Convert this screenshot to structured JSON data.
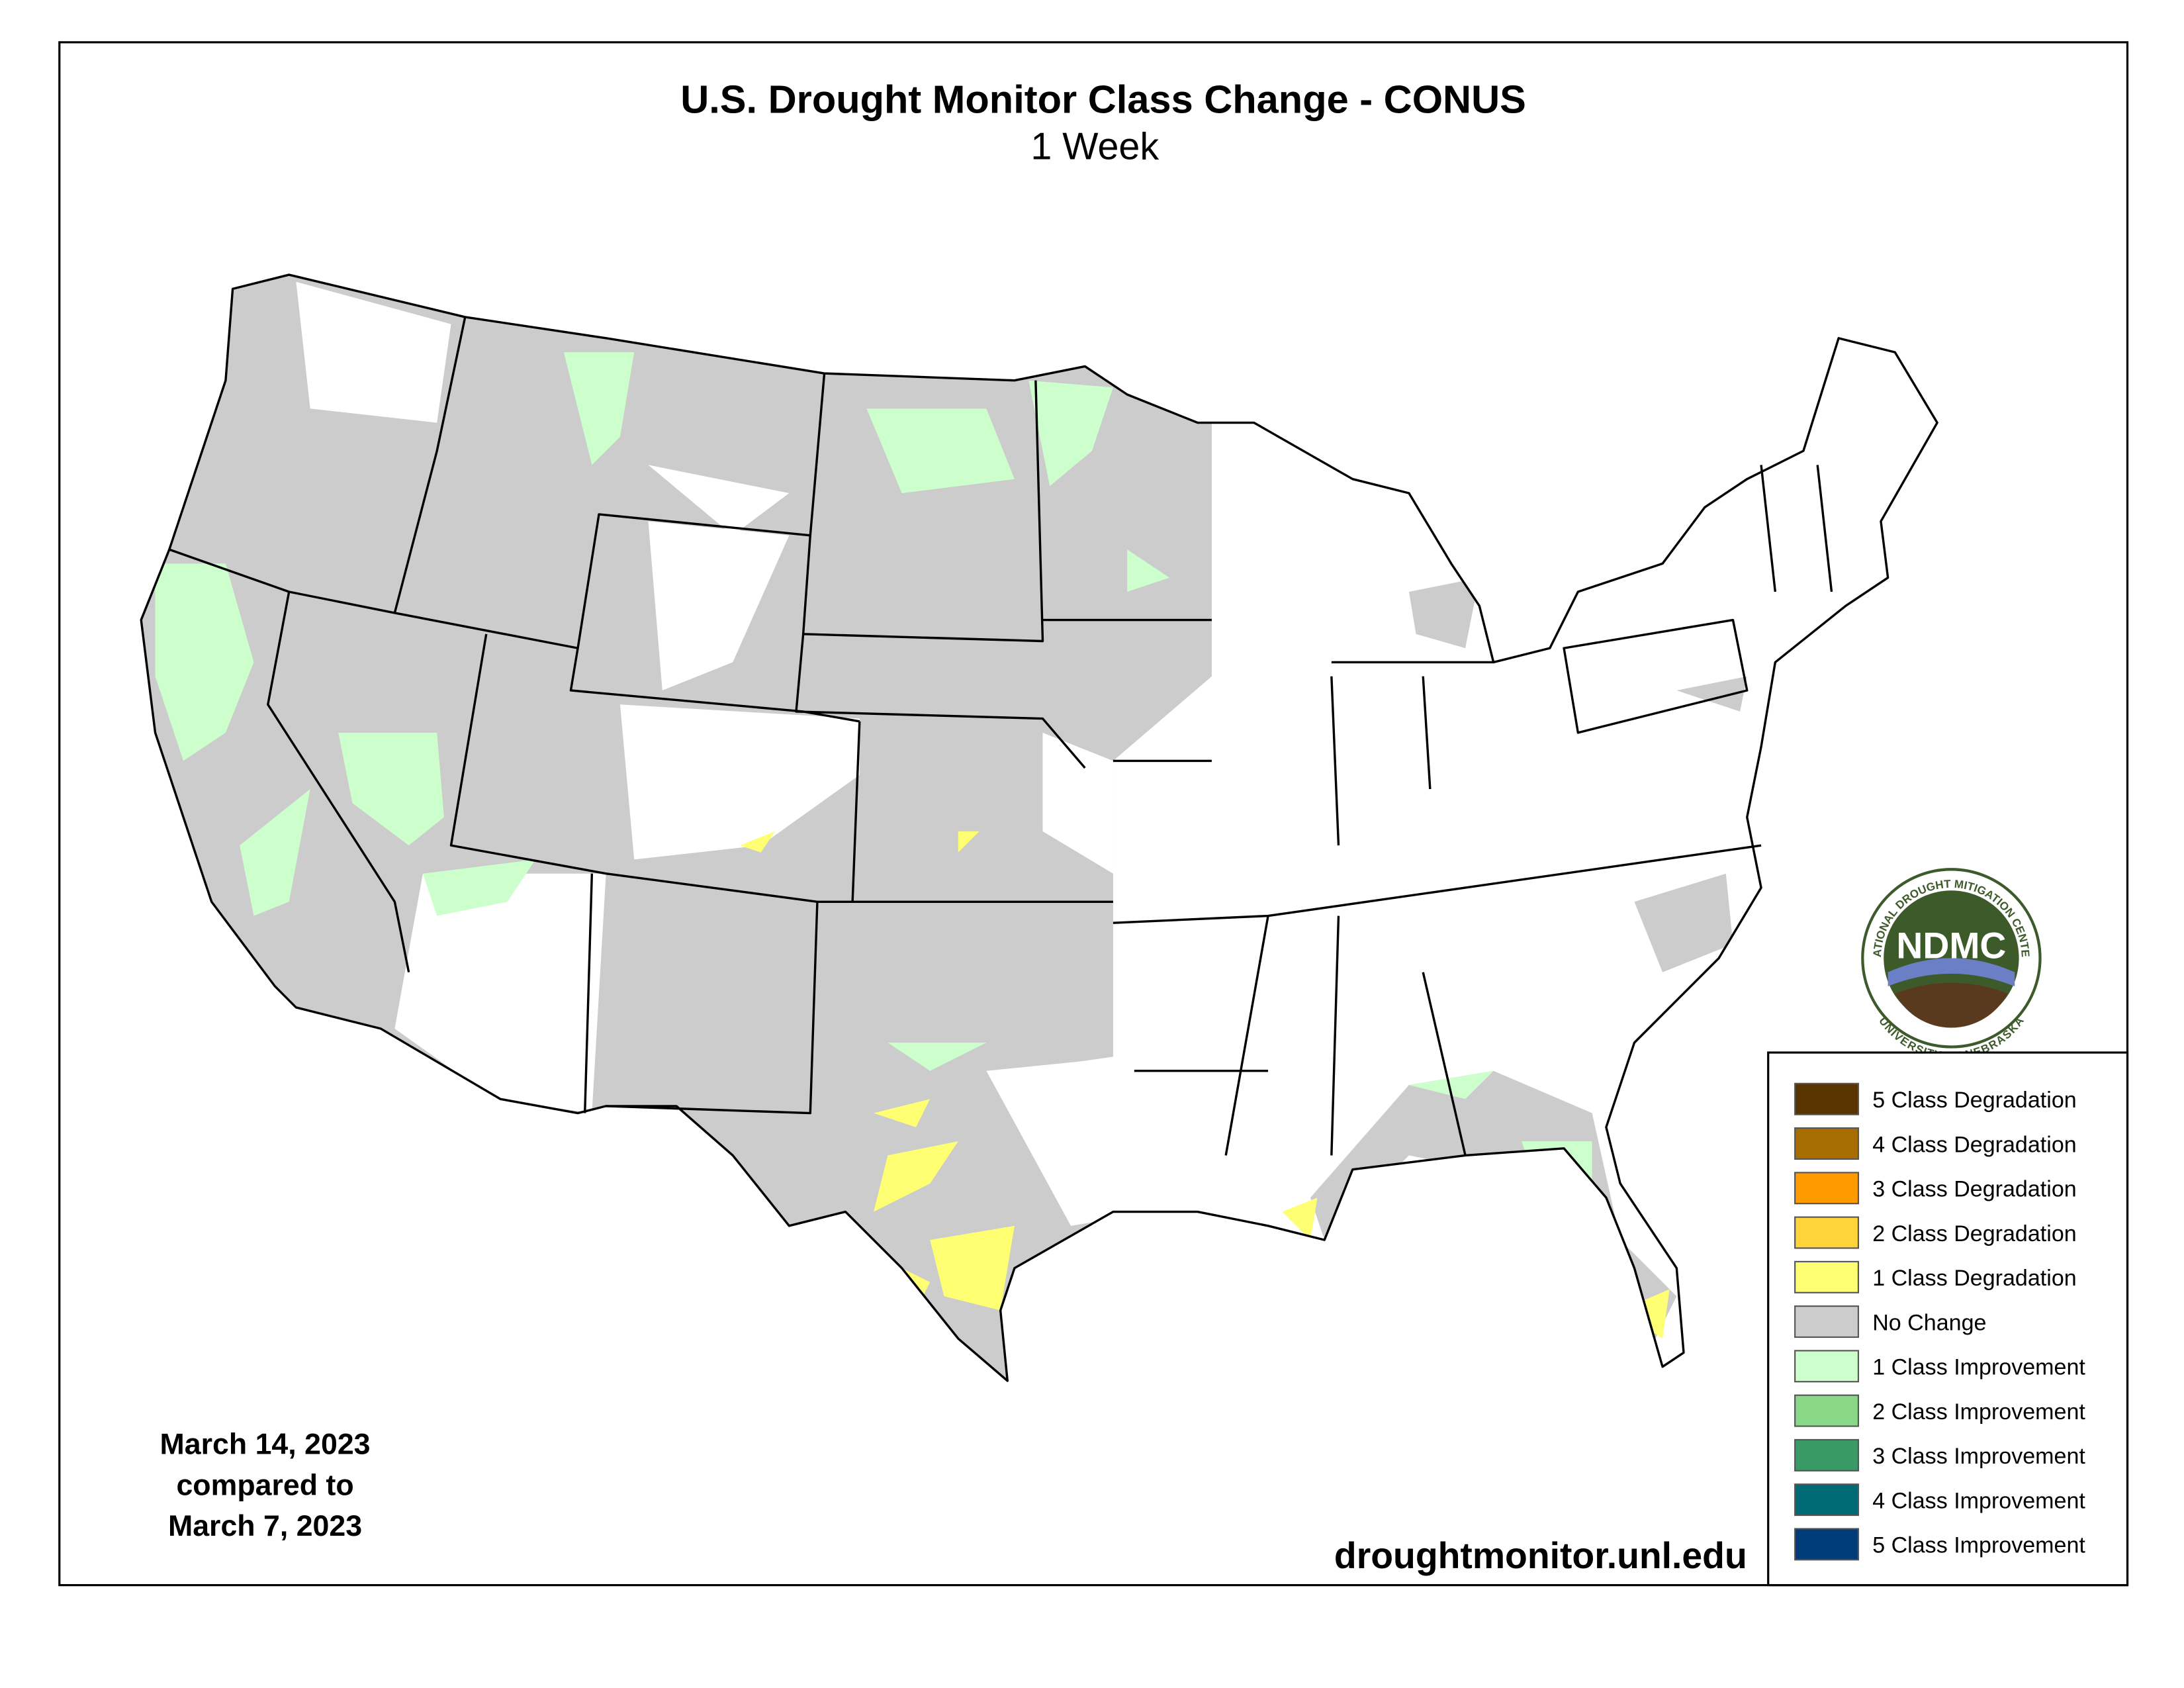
{
  "header": {
    "title": "U.S. Drought Monitor Class Change - CONUS",
    "subtitle": "1 Week"
  },
  "dates": [
    "March 14, 2023",
    "compared to",
    "March 7, 2023"
  ],
  "source": "droughtmonitor.unl.edu",
  "logo": {
    "name": "NDMC",
    "top": "NATIONAL DROUGHT MITIGATION CENTER",
    "bottom": "UNIVERSITY OF NEBRASKA"
  },
  "legend": [
    {
      "label": "5 Class Degradation",
      "color": "#573400"
    },
    {
      "label": "4 Class Degradation",
      "color": "#a86d00"
    },
    {
      "label": "3 Class Degradation",
      "color": "#ff9a00"
    },
    {
      "label": "2 Class Degradation",
      "color": "#ffd33a"
    },
    {
      "label": "1 Class Degradation",
      "color": "#ffff73"
    },
    {
      "label": "No Change",
      "color": "#cccccc"
    },
    {
      "label": "1 Class Improvement",
      "color": "#ccffcc"
    },
    {
      "label": "2 Class Improvement",
      "color": "#88d888"
    },
    {
      "label": "3 Class Improvement",
      "color": "#3a9a66"
    },
    {
      "label": "4 Class Improvement",
      "color": "#006b75"
    },
    {
      "label": "5 Class Improvement",
      "color": "#003c78"
    }
  ]
}
